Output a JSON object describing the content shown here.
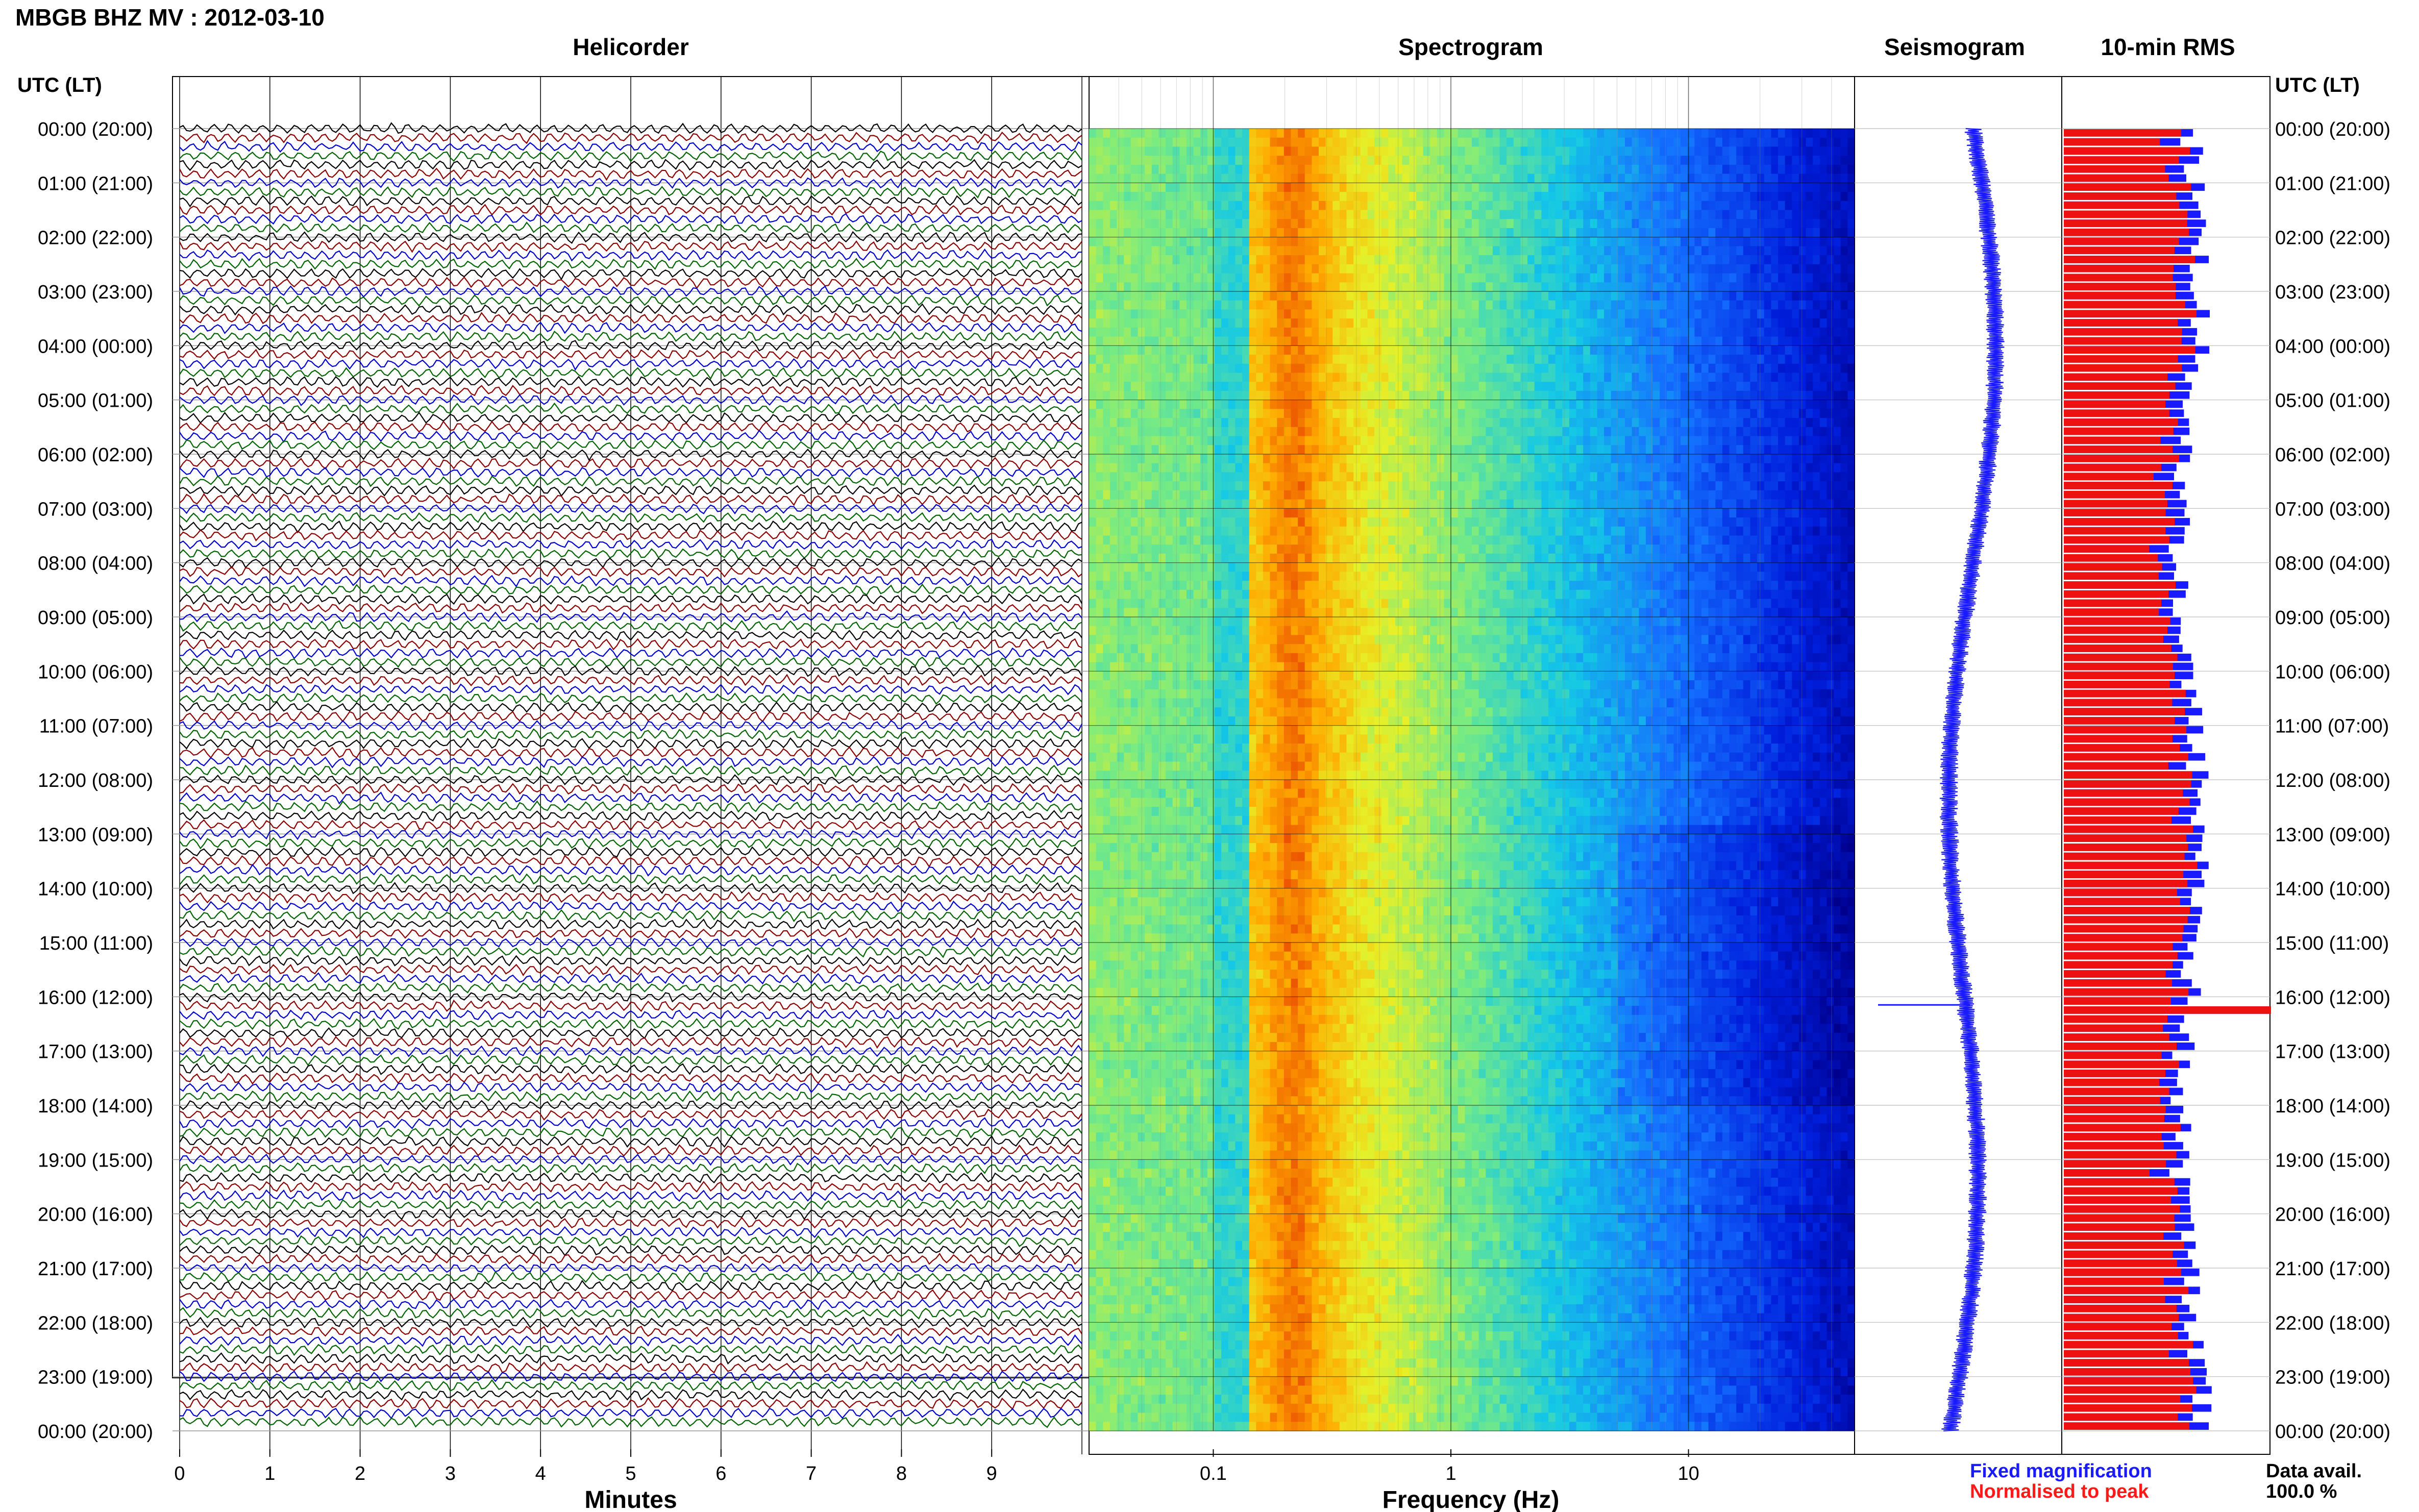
{
  "header": {
    "title": "MBGB BHZ MV : 2012-03-10",
    "utc_label_left": "UTC (LT)",
    "utc_label_right": "UTC (LT)"
  },
  "panels": {
    "helicorder": "Helicorder",
    "spectrogram": "Spectrogram",
    "seismogram": "Seismogram",
    "rms": "10-min RMS"
  },
  "axes": {
    "minutes_label": "Minutes",
    "minutes_ticks": [
      "0",
      "1",
      "2",
      "3",
      "4",
      "5",
      "6",
      "7",
      "8",
      "9"
    ],
    "frequency_label": "Frequency (Hz)",
    "frequency_ticks": [
      "0.1",
      "1",
      "10"
    ]
  },
  "time_labels": [
    "00:00 (20:00)",
    "01:00 (21:00)",
    "02:00 (22:00)",
    "03:00 (23:00)",
    "04:00 (00:00)",
    "05:00 (01:00)",
    "06:00 (02:00)",
    "07:00 (03:00)",
    "08:00 (04:00)",
    "09:00 (05:00)",
    "10:00 (06:00)",
    "11:00 (07:00)",
    "12:00 (08:00)",
    "13:00 (09:00)",
    "14:00 (10:00)",
    "15:00 (11:00)",
    "16:00 (12:00)",
    "17:00 (13:00)",
    "18:00 (14:00)",
    "19:00 (15:00)",
    "20:00 (16:00)",
    "21:00 (17:00)",
    "22:00 (18:00)",
    "23:00 (19:00)",
    "00:00 (20:00)"
  ],
  "legend": {
    "fixed": "Fixed magnification",
    "normalised": "Normalised to peak",
    "fixed_color": "#1a1aff",
    "normalised_color": "#ff1a1a"
  },
  "data_avail": {
    "label": "Data avail.",
    "value": "100.0 %"
  },
  "colors": {
    "trace_colors": [
      "#000000",
      "#8b0000",
      "#0000cd",
      "#006400"
    ],
    "rms_fixed": "#1a1aff",
    "rms_normalised": "#ee1111"
  },
  "chart_data": [
    {
      "type": "line",
      "title": "Helicorder",
      "xlabel": "Minutes",
      "x_ticks": [
        0,
        1,
        2,
        3,
        4,
        5,
        6,
        7,
        8,
        9
      ],
      "xlim": [
        0,
        10
      ],
      "rows_per_hour": 6,
      "hours": 24,
      "trace_colors_cycle": [
        "black",
        "darkred",
        "blue",
        "green"
      ]
    },
    {
      "type": "heatmap",
      "title": "Spectrogram",
      "xlabel": "Frequency (Hz)",
      "x_scale": "log",
      "x_ticks": [
        0.1,
        1,
        10
      ],
      "xlim": [
        0.03,
        50
      ],
      "dominant_band_hz": [
        0.15,
        0.3
      ]
    },
    {
      "type": "line",
      "title": "Seismogram",
      "notable_spike_hour_utc": 16.15
    },
    {
      "type": "bar",
      "title": "10-min RMS",
      "series": [
        {
          "name": "Fixed magnification",
          "color": "blue"
        },
        {
          "name": "Normalised to peak",
          "color": "red"
        }
      ],
      "peak_hour_utc": 16.15
    }
  ]
}
